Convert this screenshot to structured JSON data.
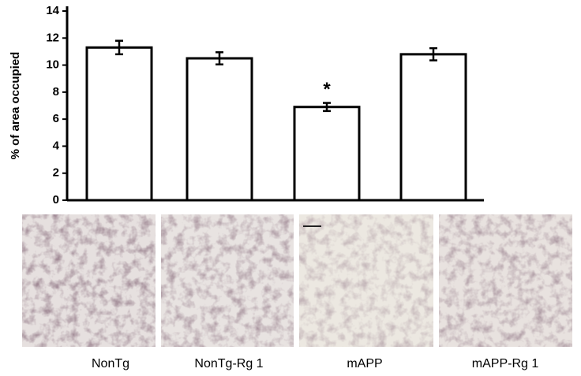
{
  "chart_data": {
    "type": "bar",
    "y_label": "% of area occupied",
    "categories": [
      "NonTg",
      "NonTg-Rg 1",
      "mAPP",
      "mAPP-Rg 1"
    ],
    "values": [
      11.3,
      10.5,
      6.9,
      10.8
    ],
    "errors": [
      0.5,
      0.45,
      0.3,
      0.45
    ],
    "color": "#ffffff",
    "ylim": [
      0,
      14
    ],
    "yticks": [
      0,
      2,
      4,
      6,
      8,
      10,
      12,
      14
    ],
    "annotations": [
      {
        "text": "*",
        "category": 2
      }
    ]
  }
}
